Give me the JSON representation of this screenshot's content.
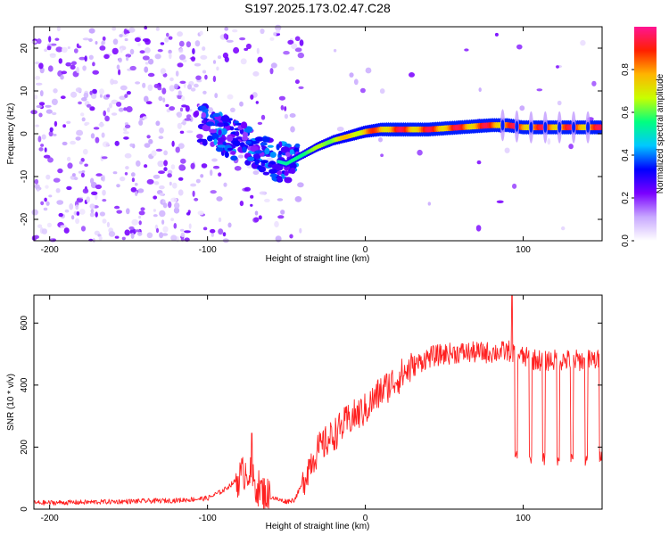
{
  "title": "S197.2025.173.02.47.C28",
  "chart_data": [
    {
      "type": "heatmap",
      "xlabel": "Height of straight line (km)",
      "ylabel": "Frequency (Hz)",
      "xlim": [
        -210,
        150
      ],
      "ylim": [
        -25,
        25
      ],
      "xticks": [
        -200,
        -100,
        0,
        100
      ],
      "yticks": [
        -20,
        -10,
        0,
        10,
        20
      ],
      "colorbar": {
        "label": "Normalized spectral amplitude",
        "range": [
          0,
          1
        ],
        "ticks": [
          "0.0",
          "0.2",
          "0.4",
          "0.6",
          "0.8"
        ],
        "colormap": [
          "#ffffff",
          "#c8a8ff",
          "#7a00ff",
          "#0000ff",
          "#00c8ff",
          "#00ff80",
          "#c8ff00",
          "#ffb400",
          "#ff2000",
          "#ff1493"
        ]
      },
      "ridge": {
        "x": [
          -100,
          -90,
          -80,
          -70,
          -60,
          -50,
          -40,
          -30,
          -20,
          -10,
          0,
          10,
          20,
          40,
          60,
          80,
          90,
          100,
          120,
          140,
          150
        ],
        "y": [
          2,
          0,
          -2,
          -3,
          -6,
          -7,
          -5,
          -3,
          -1.5,
          -0.5,
          0.5,
          1,
          1,
          1,
          1.5,
          2,
          2,
          1.5,
          1.5,
          1.5,
          1.5
        ]
      },
      "grid": false
    },
    {
      "type": "line",
      "xlabel": "Height of straight line (km)",
      "ylabel": "SNR (10 * v/v)",
      "xlim": [
        -210,
        150
      ],
      "ylim": [
        0,
        690
      ],
      "xticks": [
        -200,
        -100,
        0,
        100
      ],
      "yticks": [
        0,
        200,
        400,
        600
      ],
      "color": "#ff2020",
      "envelope": {
        "x": [
          -210,
          -180,
          -150,
          -120,
          -100,
          -90,
          -80,
          -75,
          -70,
          -65,
          -60,
          -55,
          -50,
          -45,
          -40,
          -35,
          -30,
          -20,
          -10,
          0,
          10,
          20,
          30,
          40,
          50,
          60,
          70,
          80,
          92,
          100,
          110,
          120,
          130,
          140,
          150
        ],
        "y": [
          20,
          22,
          25,
          28,
          35,
          60,
          100,
          130,
          80,
          55,
          40,
          30,
          25,
          30,
          80,
          150,
          190,
          240,
          290,
          320,
          380,
          420,
          460,
          490,
          500,
          505,
          505,
          505,
          510,
          490,
          480,
          480,
          480,
          480,
          480
        ]
      },
      "peaks": [
        {
          "x": -72,
          "y": 245
        },
        {
          "x": 93,
          "y": 690
        }
      ],
      "dips": [
        {
          "x": 95.5,
          "y": 150
        },
        {
          "x": 104.5,
          "y": 140
        },
        {
          "x": 113,
          "y": 140
        },
        {
          "x": 122,
          "y": 140
        },
        {
          "x": 131,
          "y": 140
        },
        {
          "x": 140,
          "y": 140
        },
        {
          "x": 149,
          "y": 150
        }
      ],
      "grid": false
    }
  ]
}
